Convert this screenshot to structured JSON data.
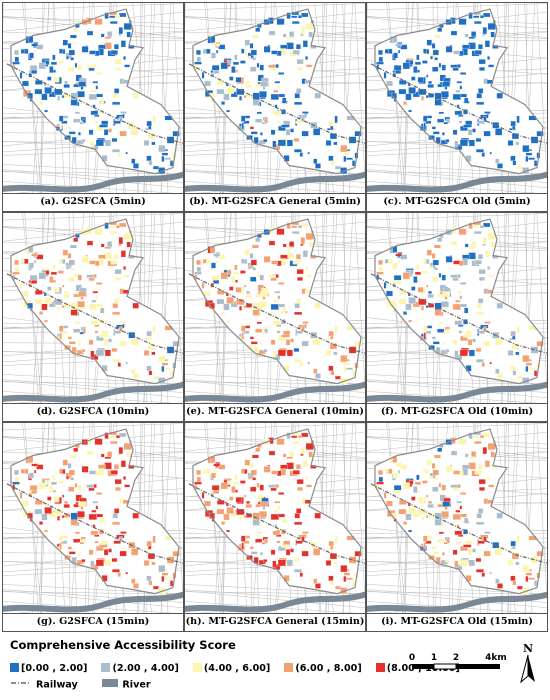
{
  "panels": [
    {
      "id": "a",
      "label": "(a). G2SFCA (5min)",
      "dist": [
        0.55,
        0.2,
        0.2,
        0.05,
        0
      ]
    },
    {
      "id": "b",
      "label": "(b). MT-G2SFCA  General (5min)",
      "dist": [
        0.5,
        0.22,
        0.22,
        0.05,
        0.01
      ]
    },
    {
      "id": "c",
      "label": "(c). MT-G2SFCA  Old (5min)",
      "dist": [
        0.82,
        0.12,
        0.05,
        0.01,
        0
      ]
    },
    {
      "id": "d",
      "label": "(d). G2SFCA (10min)",
      "dist": [
        0.06,
        0.2,
        0.3,
        0.3,
        0.14
      ]
    },
    {
      "id": "e",
      "label": "(e). MT-G2SFCA  General (10min)",
      "dist": [
        0.05,
        0.16,
        0.28,
        0.33,
        0.18
      ]
    },
    {
      "id": "f",
      "label": "(f). MT-G2SFCA  Old (10min)",
      "dist": [
        0.18,
        0.3,
        0.3,
        0.17,
        0.05
      ]
    },
    {
      "id": "g",
      "label": "(g). G2SFCA (15min)",
      "dist": [
        0.02,
        0.1,
        0.2,
        0.33,
        0.35
      ]
    },
    {
      "id": "h",
      "label": "(h). MT-G2SFCA  General (15min)",
      "dist": [
        0.02,
        0.08,
        0.17,
        0.33,
        0.4
      ]
    },
    {
      "id": "i",
      "label": "(i). MT-G2SFCA  Old (15min)",
      "dist": [
        0.06,
        0.2,
        0.3,
        0.28,
        0.16
      ]
    }
  ],
  "legend": {
    "title": "Comprehensive Accessibility Score",
    "classes": [
      {
        "label": "[0.00 , 2.00]",
        "color": "#1f6fc4"
      },
      {
        "label": "(2.00 , 4.00]",
        "color": "#a9bdcc"
      },
      {
        "label": "(4.00 , 6.00]",
        "color": "#fcf5b0"
      },
      {
        "label": "(6.00 , 8.00]",
        "color": "#f3a171"
      },
      {
        "label": "(8.00 , 10.00]",
        "color": "#e4312b"
      }
    ],
    "railway_label": "Railway",
    "river_label": "River"
  },
  "colors": {
    "railway": "#666666",
    "river": "#7a8794",
    "background_streets": "#bdbdbd",
    "boundary": "#8a8a8a"
  },
  "scalebar": {
    "ticks": [
      "0",
      "1",
      "2",
      "4km"
    ]
  },
  "north_label": "N"
}
